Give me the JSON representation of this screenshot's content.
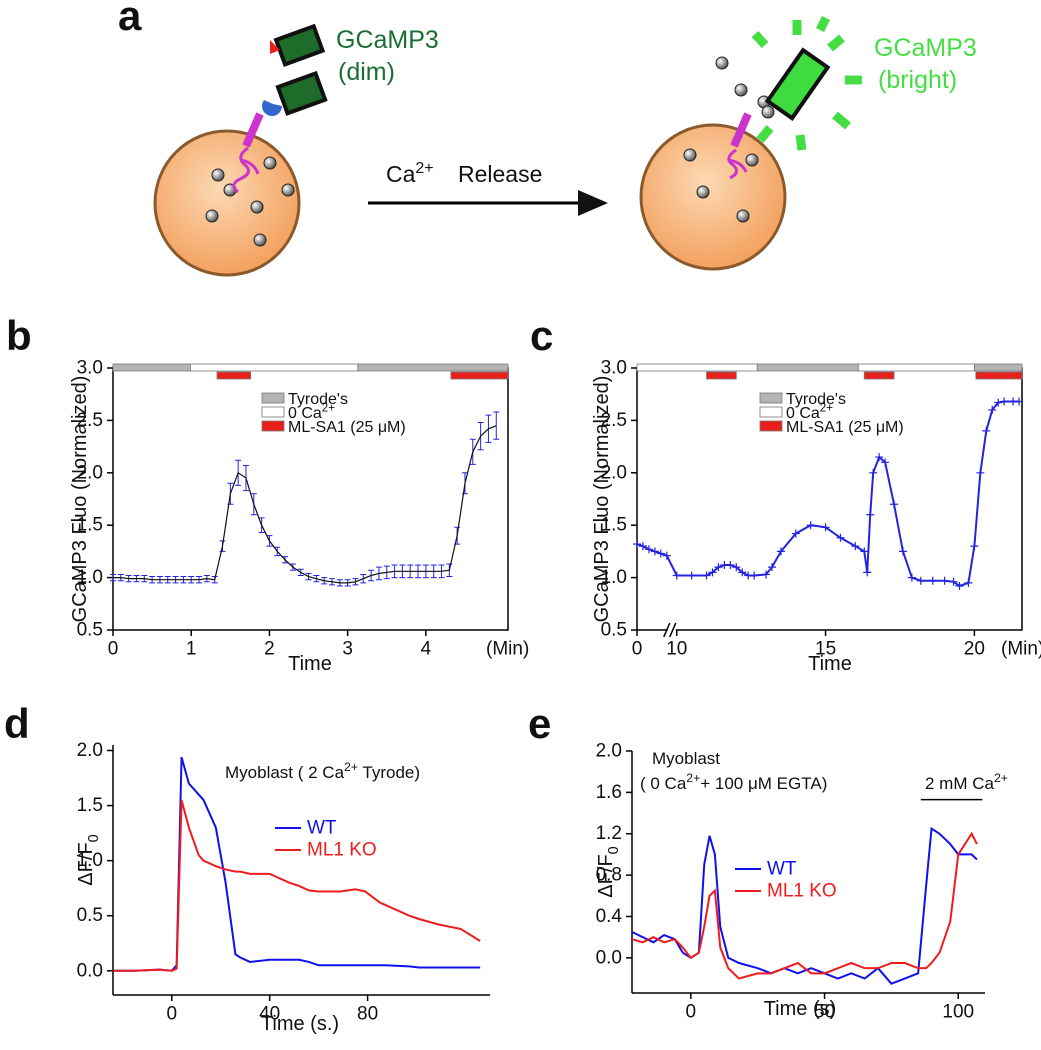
{
  "panel_a": {
    "label": "a",
    "left_name": "GCaMP3",
    "left_state": "(dim)",
    "arrow_label": [
      {
        "text": "Ca"
      },
      {
        "sup": "2+"
      }
    ],
    "arrow_word": "Release",
    "right_name": "GCaMP3",
    "right_state": "(bright)"
  },
  "chart_data": [
    {
      "type": "errorbar",
      "panel": "b",
      "frame": "box",
      "ylabel": "GCaMP3 Fluo (Normalized)",
      "xlabel": "Time",
      "xunit": "(Min)",
      "xlim": [
        0,
        5.05
      ],
      "xticks": [
        0,
        1,
        2,
        3,
        4
      ],
      "ylim": [
        0.5,
        3.0
      ],
      "yticks": [
        0.5,
        {
          "value": 1,
          "label": "1.0"
        },
        1.5,
        {
          "value": 2,
          "label": "2.0"
        },
        2.5,
        {
          "value": 3,
          "label": "3.0"
        }
      ],
      "conditions": [
        {
          "name": "Tyrode's",
          "color": "#b4b4b4",
          "segments": [
            [
              0,
              0.99
            ],
            [
              3.13,
              5.05
            ]
          ]
        },
        {
          "name": [
            {
              "text": "0 Ca"
            },
            {
              "sup": "2+"
            }
          ],
          "color": "#ffffff",
          "segments": [
            [
              0.99,
              3.13
            ]
          ]
        },
        {
          "name": "ML-SA1 (25 μM)",
          "color": "#e8201c",
          "segments": [
            [
              1.33,
              1.76
            ],
            [
              4.32,
              5.05
            ]
          ]
        }
      ],
      "x": [
        0,
        0.1,
        0.2,
        0.3,
        0.4,
        0.5,
        0.6,
        0.7,
        0.8,
        0.9,
        1.0,
        1.1,
        1.2,
        1.3,
        1.4,
        1.5,
        1.6,
        1.7,
        1.8,
        1.9,
        2.0,
        2.1,
        2.2,
        2.3,
        2.4,
        2.5,
        2.6,
        2.7,
        2.8,
        2.9,
        3.0,
        3.1,
        3.2,
        3.3,
        3.4,
        3.5,
        3.6,
        3.7,
        3.8,
        3.9,
        4.0,
        4.1,
        4.2,
        4.3,
        4.4,
        4.5,
        4.6,
        4.7,
        4.8,
        4.9
      ],
      "series": [
        {
          "color": "#2323e0",
          "values": [
            1.0,
            1.0,
            0.99,
            0.99,
            0.99,
            0.98,
            0.98,
            0.98,
            0.98,
            0.98,
            0.98,
            0.98,
            0.99,
            0.98,
            1.3,
            1.8,
            2.0,
            1.95,
            1.7,
            1.5,
            1.35,
            1.25,
            1.17,
            1.1,
            1.05,
            1.01,
            0.99,
            0.97,
            0.96,
            0.95,
            0.95,
            0.96,
            0.99,
            1.02,
            1.04,
            1.05,
            1.06,
            1.06,
            1.06,
            1.06,
            1.06,
            1.06,
            1.06,
            1.07,
            1.4,
            1.9,
            2.2,
            2.35,
            2.42,
            2.45
          ],
          "errors": [
            0.03,
            0.03,
            0.03,
            0.03,
            0.03,
            0.03,
            0.03,
            0.03,
            0.03,
            0.03,
            0.03,
            0.03,
            0.03,
            0.03,
            0.05,
            0.1,
            0.12,
            0.12,
            0.1,
            0.07,
            0.05,
            0.04,
            0.03,
            0.03,
            0.03,
            0.03,
            0.03,
            0.03,
            0.03,
            0.03,
            0.03,
            0.03,
            0.04,
            0.05,
            0.06,
            0.06,
            0.06,
            0.06,
            0.06,
            0.06,
            0.06,
            0.06,
            0.06,
            0.06,
            0.08,
            0.1,
            0.12,
            0.13,
            0.13,
            0.13
          ]
        }
      ]
    },
    {
      "type": "line",
      "marker": "+",
      "panel": "c",
      "frame": "box",
      "ylabel": "GCaMP3 Fluo (Normalized)",
      "xlabel": "Time",
      "xunit": "(Min)",
      "xlim": [
        0,
        21.6
      ],
      "xbreak": [
        1,
        10
      ],
      "xticks": [
        0,
        10,
        15,
        20
      ],
      "ylim": [
        0.5,
        3.0
      ],
      "yticks": [
        0.5,
        {
          "value": 1,
          "label": "1.0"
        },
        1.5,
        {
          "value": 2,
          "label": "2.0"
        },
        2.5,
        {
          "value": 3,
          "label": "3.0"
        }
      ],
      "conditions": [
        {
          "name": "Tyrode's",
          "color": "#b4b4b4",
          "segments": [
            [
              12.7,
              16.1
            ],
            [
              20,
              21.6
            ]
          ]
        },
        {
          "name": [
            {
              "text": "0 Ca"
            },
            {
              "sup": "2+"
            }
          ],
          "color": "#ffffff",
          "segments": [
            [
              0,
              12.7
            ],
            [
              16.1,
              20
            ]
          ]
        },
        {
          "name": "ML-SA1 (25 μM)",
          "color": "#e8201c",
          "segments": [
            [
              11,
              12
            ],
            [
              16.3,
              17.3
            ],
            [
              20.05,
              21.6
            ]
          ]
        }
      ],
      "x": [
        0,
        0.2,
        0.4,
        0.6,
        0.8,
        1.0,
        10,
        10.5,
        11,
        11.2,
        11.4,
        11.6,
        11.8,
        12,
        12.2,
        12.4,
        12.6,
        13,
        13.2,
        13.5,
        14,
        14.5,
        15,
        15.5,
        16,
        16.3,
        16.4,
        16.5,
        16.6,
        16.8,
        17,
        17.3,
        17.6,
        17.9,
        18.2,
        18.6,
        19,
        19.3,
        19.5,
        19.8,
        20,
        20.2,
        20.4,
        20.6,
        20.8,
        21,
        21.3,
        21.5
      ],
      "series": [
        {
          "color": "#2323e0",
          "values": [
            1.32,
            1.3,
            1.27,
            1.25,
            1.23,
            1.21,
            1.02,
            1.02,
            1.02,
            1.05,
            1.1,
            1.12,
            1.12,
            1.1,
            1.05,
            1.02,
            1.02,
            1.03,
            1.1,
            1.25,
            1.42,
            1.5,
            1.48,
            1.38,
            1.3,
            1.25,
            1.05,
            1.6,
            2.0,
            2.15,
            2.1,
            1.7,
            1.25,
            1.0,
            0.97,
            0.97,
            0.97,
            0.96,
            0.92,
            0.95,
            1.3,
            2.0,
            2.4,
            2.6,
            2.67,
            2.68,
            2.68,
            2.68
          ]
        }
      ]
    },
    {
      "type": "line",
      "panel": "d",
      "frame": "open",
      "ylabel": [
        {
          "text": "ΔF/F"
        },
        {
          "sub": "0"
        }
      ],
      "xlabel": "Time (s.)",
      "annotations": [
        [
          {
            "text": "Myoblast ( 2 Ca"
          },
          {
            "sup": "2+"
          },
          {
            "text": " Tyrode)"
          }
        ]
      ],
      "xlim": [
        -24,
        130
      ],
      "xticks": [
        0,
        40,
        80
      ],
      "ylim": [
        -0.22,
        2.05
      ],
      "yticks": [
        {
          "value": 0,
          "label": "0.0"
        },
        0.5,
        {
          "value": 1,
          "label": "1.0"
        },
        1.5,
        {
          "value": 2,
          "label": "2.0"
        }
      ],
      "x": [
        -24,
        -15,
        -5,
        0,
        2,
        4,
        7,
        11,
        13,
        18,
        22,
        26,
        28,
        32,
        40,
        48,
        52,
        56,
        60,
        69,
        75,
        79,
        85,
        87,
        97,
        101,
        109,
        118,
        126
      ],
      "series": [
        {
          "name": "WT",
          "color": "#1010ee",
          "values": [
            0,
            0,
            0.01,
            0,
            0.05,
            1.94,
            1.7,
            1.6,
            1.55,
            1.3,
            0.8,
            0.15,
            0.12,
            0.08,
            0.1,
            0.1,
            0.1,
            0.08,
            0.05,
            0.05,
            0.05,
            0.05,
            0.05,
            0.05,
            0.04,
            0.03,
            0.03,
            0.03,
            0.03
          ]
        },
        {
          "name": "ML1 KO",
          "color": "#ee1c1c",
          "values": [
            0,
            0,
            0.01,
            0,
            0.02,
            1.55,
            1.3,
            1.05,
            1.0,
            0.95,
            0.92,
            0.9,
            0.9,
            0.88,
            0.88,
            0.8,
            0.77,
            0.73,
            0.72,
            0.72,
            0.74,
            0.72,
            0.62,
            0.6,
            0.5,
            0.47,
            0.42,
            0.38,
            0.27
          ]
        }
      ]
    },
    {
      "type": "line",
      "panel": "e",
      "frame": "open",
      "ylabel": [
        {
          "text": "ΔF/F"
        },
        {
          "sub": "0"
        }
      ],
      "xlabel": "Time (s)",
      "annotations": [
        "Myoblast",
        [
          {
            "text": "( 0 Ca"
          },
          {
            "sup": "2+"
          },
          {
            "text": "+ 100 μM EGTA)"
          }
        ],
        [
          {
            "text": "2 mM Ca"
          },
          {
            "sup": "2+"
          }
        ]
      ],
      "bracket": {
        "x": [
          86,
          109
        ],
        "y": 1.53
      },
      "xlim": [
        -22,
        110
      ],
      "xticks": [
        0,
        50,
        100
      ],
      "ylim": [
        -0.34,
        2.0
      ],
      "yticks": [
        {
          "value": 0,
          "label": "0.0"
        },
        0.4,
        0.8,
        1.2,
        1.6,
        {
          "value": 2,
          "label": "2.0"
        }
      ],
      "x": [
        -22,
        -18,
        -14,
        -10,
        -6,
        -3,
        0,
        3,
        5,
        7,
        9,
        11,
        14,
        18,
        25,
        30,
        35,
        40,
        45,
        50,
        55,
        60,
        65,
        70,
        75,
        80,
        85,
        88,
        90,
        93,
        97,
        100,
        105,
        107
      ],
      "series": [
        {
          "name": "WT",
          "color": "#1010ee",
          "values": [
            0.25,
            0.2,
            0.15,
            0.22,
            0.18,
            0.05,
            0.0,
            0.05,
            0.9,
            1.18,
            1.0,
            0.3,
            0.0,
            -0.05,
            -0.1,
            -0.15,
            -0.1,
            -0.15,
            -0.1,
            -0.15,
            -0.2,
            -0.15,
            -0.2,
            -0.1,
            -0.25,
            -0.2,
            -0.15,
            0.7,
            1.25,
            1.2,
            1.1,
            1.0,
            1.0,
            0.95
          ]
        },
        {
          "name": "ML1 KO",
          "color": "#ee1c1c",
          "values": [
            0.18,
            0.15,
            0.2,
            0.15,
            0.18,
            0.1,
            0.0,
            0.05,
            0.3,
            0.6,
            0.65,
            0.1,
            -0.1,
            -0.2,
            -0.15,
            -0.15,
            -0.1,
            -0.05,
            -0.15,
            -0.15,
            -0.1,
            -0.05,
            -0.1,
            -0.1,
            -0.05,
            -0.05,
            -0.1,
            -0.1,
            -0.05,
            0.05,
            0.35,
            1.0,
            1.2,
            1.1
          ]
        }
      ]
    }
  ]
}
